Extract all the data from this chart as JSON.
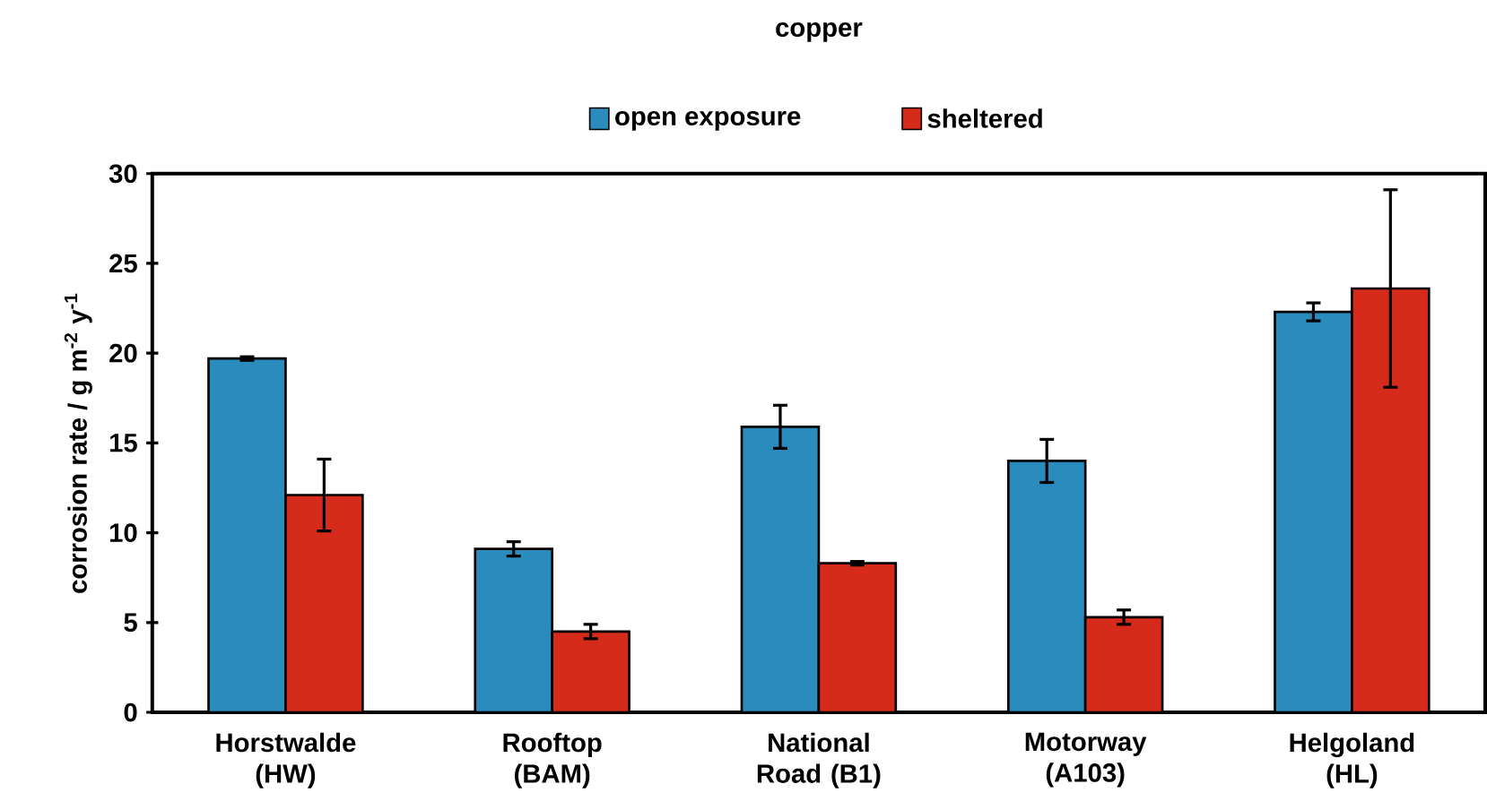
{
  "chart_data": {
    "type": "bar",
    "title": "copper",
    "ylabel": "corrosion rate / g m$^{-2}$ y$^{-1}$",
    "categories": [
      "Horstwalde (HW)",
      "Rooftop (BAM)",
      "National Road (B1)",
      "Motorway (A103)",
      "Helgoland (HL)"
    ],
    "series": [
      {
        "name": "open exposure",
        "color": "#2a8bbd",
        "values": [
          19.7,
          9.1,
          15.9,
          14.0,
          22.3
        ],
        "errors": [
          0.1,
          0.4,
          1.2,
          1.2,
          0.5
        ]
      },
      {
        "name": "sheltered",
        "color": "#d62a1a",
        "values": [
          12.1,
          4.5,
          8.3,
          5.3,
          23.6
        ],
        "errors": [
          2.0,
          0.4,
          0.1,
          0.4,
          5.5
        ]
      }
    ],
    "ylim": [
      0,
      30
    ],
    "yticks": [
      0,
      5,
      10,
      15,
      20,
      25,
      30
    ],
    "grid": false,
    "legend": "top"
  }
}
